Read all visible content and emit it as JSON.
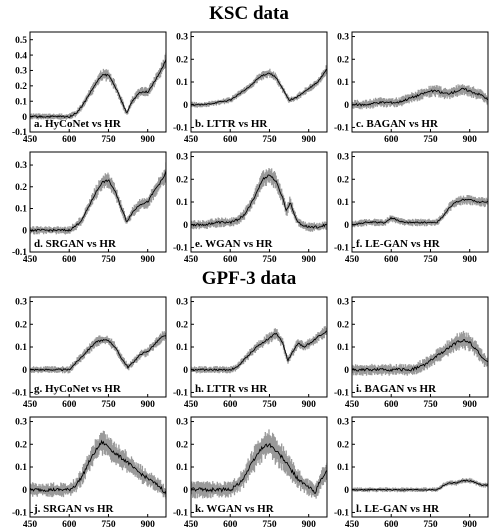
{
  "section_titles": [
    "KSC data",
    "GPF-3 data"
  ],
  "chart_data": [
    {
      "type": "line",
      "label": "a. HyCoNet vs HR",
      "xlim": [
        450,
        970
      ],
      "ylim": [
        -0.1,
        0.55
      ],
      "xticks": [
        450,
        600,
        750,
        900
      ],
      "yticks": [
        -0.1,
        0,
        0.1,
        0.2,
        0.3,
        0.4,
        0.5
      ],
      "spread": 0.025,
      "x": [
        450,
        500,
        550,
        600,
        625,
        650,
        675,
        700,
        725,
        750,
        775,
        800,
        820,
        840,
        870,
        900,
        930,
        960,
        970
      ],
      "y": [
        0,
        0,
        0,
        0,
        0.02,
        0.07,
        0.14,
        0.21,
        0.27,
        0.27,
        0.2,
        0.1,
        0.02,
        0.1,
        0.16,
        0.16,
        0.24,
        0.33,
        0.37
      ]
    },
    {
      "type": "line",
      "label": "b. LTTR vs HR",
      "xlim": [
        450,
        970
      ],
      "ylim": [
        -0.12,
        0.32
      ],
      "xticks": [
        450,
        600,
        750,
        900
      ],
      "yticks": [
        -0.1,
        0,
        0.1,
        0.2,
        0.3
      ],
      "spread": 0.012,
      "x": [
        450,
        500,
        550,
        600,
        625,
        650,
        675,
        700,
        725,
        750,
        775,
        800,
        825,
        850,
        875,
        900,
        935,
        960,
        970
      ],
      "y": [
        0,
        0,
        0.01,
        0.02,
        0.04,
        0.06,
        0.08,
        0.11,
        0.13,
        0.14,
        0.12,
        0.07,
        0.02,
        0.03,
        0.05,
        0.07,
        0.1,
        0.14,
        0.16
      ]
    },
    {
      "type": "line",
      "label": "c. BAGAN vs HR",
      "xlim": [
        450,
        970
      ],
      "ylim": [
        -0.12,
        0.32
      ],
      "xticks": [
        600,
        750,
        900
      ],
      "yticks": [
        -0.1,
        0,
        0.1,
        0.2,
        0.3
      ],
      "spread": 0.02,
      "x": [
        450,
        500,
        550,
        600,
        625,
        650,
        675,
        700,
        725,
        750,
        775,
        800,
        825,
        850,
        875,
        900,
        925,
        950,
        970
      ],
      "y": [
        0,
        0,
        0.01,
        0.01,
        0.01,
        0.02,
        0.03,
        0.04,
        0.05,
        0.06,
        0.06,
        0.05,
        0.05,
        0.06,
        0.07,
        0.06,
        0.05,
        0.04,
        0.02
      ]
    },
    {
      "type": "line",
      "label": "d. SRGAN vs HR",
      "xlim": [
        450,
        970
      ],
      "ylim": [
        -0.1,
        0.36
      ],
      "xticks": [
        450,
        600,
        750,
        900
      ],
      "yticks": [
        -0.1,
        0,
        0.1,
        0.2,
        0.3
      ],
      "spread": 0.02,
      "x": [
        450,
        500,
        550,
        600,
        625,
        650,
        675,
        700,
        725,
        750,
        775,
        800,
        820,
        840,
        870,
        900,
        930,
        960,
        970
      ],
      "y": [
        0,
        0,
        0,
        0,
        0.02,
        0.05,
        0.11,
        0.17,
        0.22,
        0.23,
        0.18,
        0.1,
        0.04,
        0.08,
        0.12,
        0.13,
        0.19,
        0.24,
        0.27
      ]
    },
    {
      "type": "line",
      "label": "e. WGAN vs HR",
      "xlim": [
        450,
        970
      ],
      "ylim": [
        -0.12,
        0.32
      ],
      "xticks": [
        450,
        600,
        750,
        900
      ],
      "yticks": [
        -0.1,
        0,
        0.1,
        0.2,
        0.3
      ],
      "spread": 0.02,
      "x": [
        450,
        500,
        550,
        600,
        625,
        650,
        675,
        700,
        725,
        750,
        775,
        800,
        815,
        830,
        850,
        870,
        900,
        935,
        970
      ],
      "y": [
        0,
        0,
        0.01,
        0.01,
        0.02,
        0.04,
        0.08,
        0.14,
        0.2,
        0.22,
        0.19,
        0.12,
        0.06,
        0.1,
        0.03,
        0,
        -0.01,
        -0.01,
        0
      ]
    },
    {
      "type": "line",
      "label": "f. LE-GAN vs HR",
      "xlim": [
        450,
        970
      ],
      "ylim": [
        -0.12,
        0.32
      ],
      "xticks": [
        450,
        600,
        750,
        900
      ],
      "yticks": [
        -0.1,
        0,
        0.1,
        0.2,
        0.3
      ],
      "spread": 0.015,
      "x": [
        450,
        500,
        550,
        575,
        600,
        625,
        650,
        675,
        700,
        725,
        750,
        775,
        800,
        825,
        850,
        875,
        900,
        935,
        970
      ],
      "y": [
        0,
        0.01,
        0.01,
        0.01,
        0.03,
        0.02,
        0.01,
        0.01,
        0.01,
        0.01,
        0.01,
        0.01,
        0.04,
        0.08,
        0.1,
        0.11,
        0.11,
        0.1,
        0.1
      ]
    },
    {
      "type": "line",
      "label": "g. HyCoNet vs HR",
      "xlim": [
        450,
        970
      ],
      "ylim": [
        -0.12,
        0.32
      ],
      "xticks": [
        450,
        600,
        750,
        900
      ],
      "yticks": [
        -0.1,
        0,
        0.1,
        0.2,
        0.3
      ],
      "spread": 0.015,
      "x": [
        450,
        500,
        550,
        600,
        625,
        650,
        675,
        700,
        725,
        750,
        775,
        800,
        825,
        850,
        875,
        900,
        925,
        950,
        970
      ],
      "y": [
        0,
        0,
        0,
        0,
        0.03,
        0.06,
        0.09,
        0.12,
        0.13,
        0.13,
        0.1,
        0.05,
        0.01,
        0.04,
        0.07,
        0.08,
        0.11,
        0.14,
        0.15
      ]
    },
    {
      "type": "line",
      "label": "h. LTTR vs HR",
      "xlim": [
        450,
        970
      ],
      "ylim": [
        -0.12,
        0.32
      ],
      "xticks": [
        450,
        600,
        750,
        900
      ],
      "yticks": [
        -0.1,
        0,
        0.1,
        0.2,
        0.3
      ],
      "spread": 0.015,
      "x": [
        450,
        500,
        550,
        600,
        625,
        650,
        675,
        700,
        725,
        750,
        775,
        800,
        820,
        840,
        860,
        880,
        910,
        940,
        970
      ],
      "y": [
        0,
        0,
        0,
        0,
        0.01,
        0.04,
        0.07,
        0.1,
        0.12,
        0.14,
        0.16,
        0.12,
        0.04,
        0.08,
        0.12,
        0.1,
        0.12,
        0.15,
        0.17
      ]
    },
    {
      "type": "line",
      "label": "i. BAGAN vs HR",
      "xlim": [
        450,
        970
      ],
      "ylim": [
        -0.12,
        0.32
      ],
      "xticks": [
        450,
        600,
        750,
        900
      ],
      "yticks": [
        -0.1,
        0,
        0.1,
        0.2,
        0.3
      ],
      "spread": 0.025,
      "x": [
        450,
        500,
        550,
        600,
        625,
        650,
        675,
        700,
        725,
        750,
        775,
        800,
        825,
        850,
        875,
        900,
        925,
        950,
        970
      ],
      "y": [
        0,
        0,
        0,
        0,
        0,
        0,
        0,
        0.01,
        0.02,
        0.04,
        0.06,
        0.08,
        0.1,
        0.12,
        0.13,
        0.12,
        0.09,
        0.05,
        0.03
      ]
    },
    {
      "type": "line",
      "label": "j. SRGAN vs HR",
      "xlim": [
        450,
        970
      ],
      "ylim": [
        -0.12,
        0.32
      ],
      "xticks": [
        450,
        600,
        750,
        900
      ],
      "yticks": [
        -0.1,
        0,
        0.1,
        0.2,
        0.3
      ],
      "spread": 0.03,
      "x": [
        450,
        500,
        550,
        600,
        625,
        650,
        675,
        700,
        725,
        750,
        775,
        800,
        825,
        850,
        875,
        900,
        925,
        950,
        970
      ],
      "y": [
        0,
        0,
        0,
        0,
        0.02,
        0.06,
        0.12,
        0.17,
        0.21,
        0.19,
        0.16,
        0.14,
        0.12,
        0.09,
        0.07,
        0.05,
        0.03,
        0.01,
        -0.02
      ]
    },
    {
      "type": "line",
      "label": "k. WGAN vs HR",
      "xlim": [
        450,
        970
      ],
      "ylim": [
        -0.12,
        0.32
      ],
      "xticks": [
        450,
        600,
        750,
        900
      ],
      "yticks": [
        -0.1,
        0,
        0.1,
        0.2,
        0.3
      ],
      "spread": 0.035,
      "x": [
        450,
        500,
        550,
        600,
        625,
        650,
        675,
        700,
        725,
        750,
        775,
        800,
        825,
        850,
        875,
        900,
        925,
        950,
        970
      ],
      "y": [
        0,
        0,
        0,
        0,
        0.02,
        0.05,
        0.1,
        0.15,
        0.19,
        0.2,
        0.17,
        0.14,
        0.1,
        0.06,
        0.03,
        0.01,
        -0.01,
        0.05,
        0.08
      ]
    },
    {
      "type": "line",
      "label": "l. LE-GAN vs HR",
      "xlim": [
        450,
        970
      ],
      "ylim": [
        -0.12,
        0.32
      ],
      "xticks": [
        450,
        600,
        750,
        900
      ],
      "yticks": [
        -0.1,
        0,
        0.1,
        0.2,
        0.3
      ],
      "spread": 0.01,
      "x": [
        450,
        500,
        550,
        600,
        650,
        700,
        725,
        750,
        775,
        790,
        800,
        825,
        850,
        875,
        900,
        925,
        950,
        970
      ],
      "y": [
        0,
        0,
        0,
        0,
        0,
        0,
        0,
        0,
        0,
        0.01,
        0.02,
        0.03,
        0.03,
        0.04,
        0.04,
        0.03,
        0.02,
        0.02
      ]
    }
  ]
}
